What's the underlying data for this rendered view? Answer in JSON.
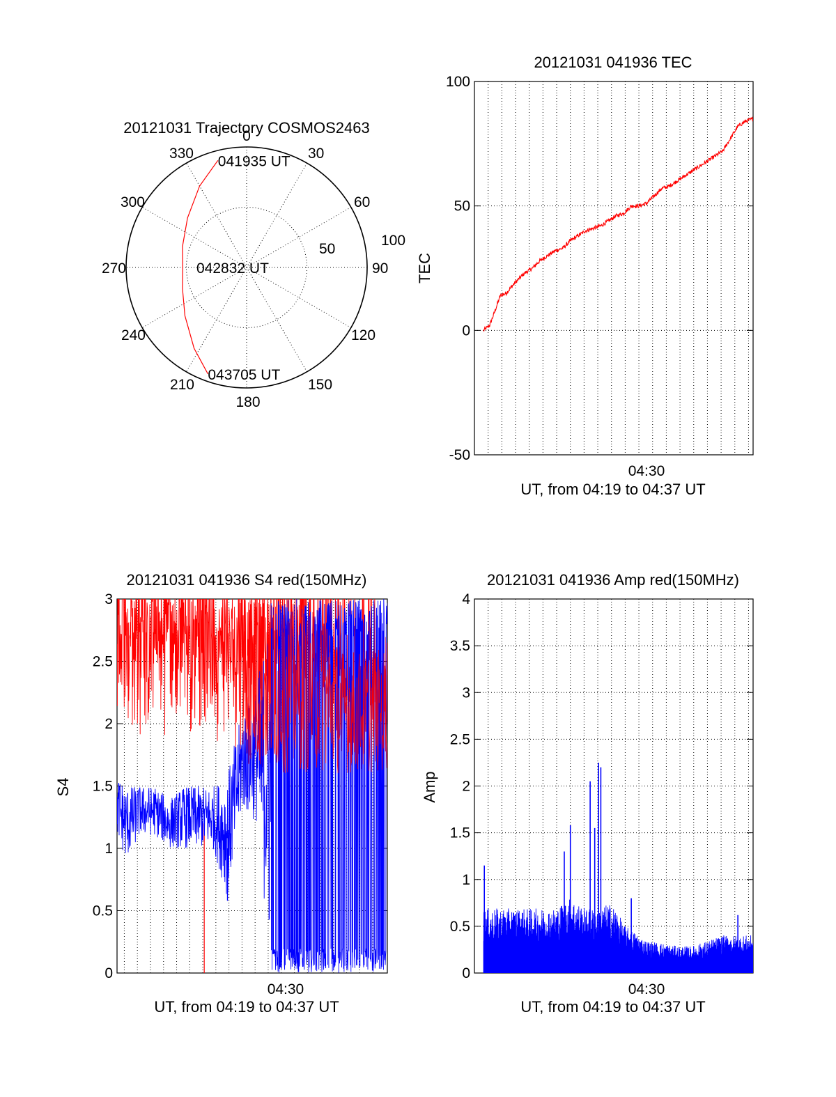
{
  "colors": {
    "red": "#ff0000",
    "blue": "#0000ff",
    "axis": "#000000"
  },
  "chart_data": [
    {
      "id": "trajectory",
      "type": "polar",
      "title": "20121031 Trajectory COSMOS2463",
      "azimuth_labels": [
        "0",
        "30",
        "60",
        "90",
        "120",
        "150",
        "180",
        "210",
        "240",
        "270",
        "300",
        "330"
      ],
      "radial_ticks": [
        50,
        100
      ],
      "radial_labels": [
        "50",
        "100"
      ],
      "rlim": [
        0,
        100
      ],
      "grid": true,
      "series": [
        {
          "color": "red",
          "points": [
            {
              "az": 345,
              "r": 92
            },
            {
              "az": 330,
              "r": 78
            },
            {
              "az": 310,
              "r": 64
            },
            {
              "az": 288,
              "r": 56
            },
            {
              "az": 270,
              "r": 53
            },
            {
              "az": 252,
              "r": 56
            },
            {
              "az": 232,
              "r": 65
            },
            {
              "az": 213,
              "r": 80
            },
            {
              "az": 200,
              "r": 94
            }
          ]
        }
      ],
      "annotations": [
        {
          "text": "041935 UT",
          "az": 345,
          "r": 92
        },
        {
          "text": "042832 UT",
          "az": 270,
          "r": 53
        },
        {
          "text": "043705 UT",
          "az": 200,
          "r": 94
        }
      ]
    },
    {
      "id": "tec",
      "type": "line",
      "title": "20121031 041936 TEC",
      "ylabel": "TEC",
      "xlabel": "UT, from 04:19 to 04:37 UT",
      "x_ticklabels": [
        {
          "at": 30,
          "text": "04:30"
        }
      ],
      "xlim": [
        18.7,
        37.0
      ],
      "ylim": [
        -50,
        100
      ],
      "yticks": [
        -50,
        0,
        50,
        100
      ],
      "xgrid": [
        19.6,
        20.5,
        21.4,
        22.3,
        23.2,
        24.1,
        25.0,
        25.9,
        26.8,
        27.7,
        28.6,
        29.5,
        30.4,
        31.3,
        32.2,
        33.1,
        34.0,
        34.9,
        35.8,
        36.7
      ],
      "ygrid": [
        0,
        50
      ],
      "series": [
        {
          "color": "red",
          "x": [
            19.3,
            19.7,
            20.0,
            20.4,
            20.8,
            21.2,
            21.5,
            22.0,
            22.5,
            23.0,
            23.5,
            24.0,
            24.5,
            25.0,
            25.5,
            26.0,
            26.5,
            27.0,
            27.5,
            28.0,
            28.5,
            29.0,
            29.5,
            30.0,
            30.5,
            31.0,
            31.5,
            32.0,
            32.5,
            33.0,
            33.5,
            34.0,
            34.5,
            35.0,
            35.5,
            36.0,
            36.5,
            37.0
          ],
          "y": [
            0,
            2,
            7,
            14,
            15,
            18,
            20,
            23,
            25,
            28,
            30,
            32,
            33,
            36,
            38,
            40,
            41,
            42,
            44,
            46,
            47,
            50,
            50,
            51,
            54,
            57,
            58,
            60,
            62,
            64,
            66,
            68,
            70,
            72,
            77,
            82,
            84,
            85
          ]
        }
      ]
    },
    {
      "id": "s4",
      "type": "line",
      "title": "20121031 041936 S4 red(150MHz)",
      "ylabel": "S4",
      "xlabel": "UT, from 04:19 to 04:37 UT",
      "x_ticklabels": [
        {
          "at": 30,
          "text": "04:30"
        }
      ],
      "xlim": [
        18.4,
        37.0
      ],
      "ylim": [
        0,
        3
      ],
      "yticks": [
        0,
        0.5,
        1,
        1.5,
        2,
        2.5,
        3
      ],
      "ytick_labels": [
        "0",
        "0.5",
        "1",
        "1.5",
        "2",
        "2.5",
        "3"
      ],
      "xgrid": [
        18.9,
        19.8,
        20.7,
        21.6,
        22.5,
        23.4,
        24.3,
        25.2,
        26.1,
        27.0,
        27.9,
        28.8,
        29.7,
        30.6,
        31.5,
        32.4,
        33.3,
        34.2,
        35.1,
        36.0
      ],
      "ygrid": [
        0.5,
        1,
        1.5,
        2,
        2.5
      ],
      "series": [
        {
          "color": "red",
          "x": [
            18.4,
            20.0,
            22.0,
            24.0,
            26.0,
            27.0,
            28.0,
            30.0,
            32.0,
            34.0,
            36.0,
            37.0
          ],
          "y_low": [
            2.0,
            1.8,
            1.9,
            1.9,
            1.8,
            1.7,
            1.6,
            1.6,
            1.6,
            1.6,
            1.6,
            1.6
          ],
          "y_high": [
            3.0,
            3.0,
            3.0,
            3.0,
            3.0,
            3.0,
            3.0,
            3.0,
            2.9,
            2.6,
            2.6,
            2.6
          ],
          "spike": {
            "x": 24.4,
            "y_low": 0
          }
        },
        {
          "color": "blue",
          "x": [
            18.4,
            19.0,
            20.0,
            21.0,
            22.0,
            23.0,
            24.0,
            25.0,
            26.0,
            27.0,
            28.0,
            29.0,
            30.0,
            32.0,
            34.0,
            36.0,
            37.0
          ],
          "y_low": [
            1.1,
            0.9,
            1.1,
            1.1,
            1.0,
            1.0,
            1.0,
            1.0,
            0.6,
            1.3,
            1.2,
            0.0,
            0.0,
            0.0,
            0.0,
            0.0,
            0.0
          ],
          "y_high": [
            1.6,
            1.5,
            1.5,
            1.5,
            1.4,
            1.5,
            1.5,
            1.5,
            1.6,
            2.1,
            2.3,
            3.0,
            3.0,
            3.0,
            3.0,
            3.0,
            3.0
          ]
        }
      ]
    },
    {
      "id": "amp",
      "type": "area",
      "title": "20121031 041936 Amp red(150MHz)",
      "ylabel": "Amp",
      "xlabel": "UT, from 04:19 to 04:37 UT",
      "x_ticklabels": [
        {
          "at": 30,
          "text": "04:30"
        }
      ],
      "xlim": [
        18.7,
        37.0
      ],
      "ylim": [
        0,
        4
      ],
      "yticks": [
        0,
        0.5,
        1,
        1.5,
        2,
        2.5,
        3,
        3.5,
        4
      ],
      "ytick_labels": [
        "0",
        "0.5",
        "1",
        "1.5",
        "2",
        "2.5",
        "3",
        "3.5",
        "4"
      ],
      "xgrid": [
        19.6,
        20.5,
        21.4,
        22.3,
        23.2,
        24.1,
        25.0,
        25.9,
        26.8,
        27.7,
        28.6,
        29.5,
        30.4,
        31.3,
        32.2,
        33.1,
        34.0,
        34.9,
        35.8,
        36.7
      ],
      "ygrid": [
        0.5,
        1,
        1.5,
        2,
        2.5,
        3,
        3.5
      ],
      "series": [
        {
          "color": "blue",
          "x": [
            19.3,
            20.0,
            21.0,
            22.0,
            23.0,
            24.0,
            24.5,
            25.0,
            25.5,
            26.0,
            26.5,
            27.0,
            27.5,
            28.0,
            28.5,
            29.0,
            29.5,
            30.0,
            31.0,
            32.0,
            33.0,
            34.0,
            35.0,
            36.0,
            37.0
          ],
          "y": [
            0.6,
            0.6,
            0.6,
            0.6,
            0.6,
            0.6,
            0.65,
            0.7,
            0.65,
            0.6,
            0.6,
            0.6,
            0.65,
            0.6,
            0.45,
            0.4,
            0.35,
            0.3,
            0.28,
            0.25,
            0.25,
            0.3,
            0.35,
            0.35,
            0.35
          ],
          "spikes": [
            {
              "x": 19.35,
              "y": 1.15
            },
            {
              "x": 24.6,
              "y": 1.3
            },
            {
              "x": 25.0,
              "y": 1.58
            },
            {
              "x": 26.3,
              "y": 2.05
            },
            {
              "x": 26.6,
              "y": 1.55
            },
            {
              "x": 26.85,
              "y": 2.25
            },
            {
              "x": 27.0,
              "y": 2.2
            },
            {
              "x": 29.0,
              "y": 0.8
            },
            {
              "x": 36.0,
              "y": 0.62
            }
          ]
        }
      ]
    }
  ]
}
